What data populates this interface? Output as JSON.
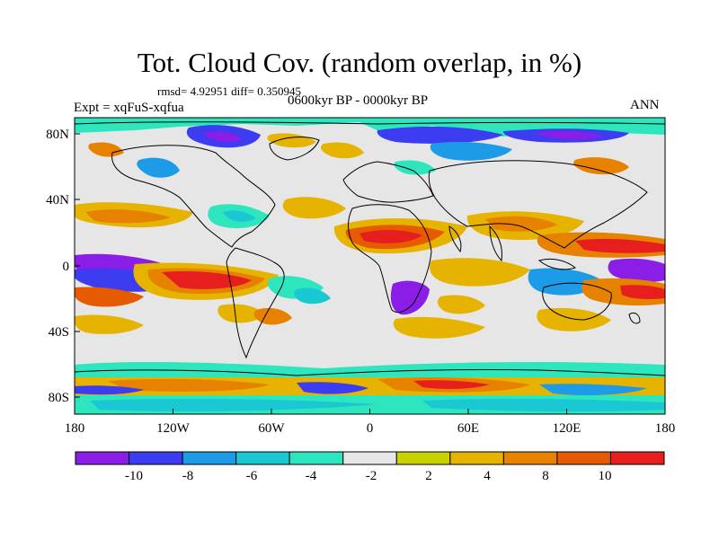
{
  "header": {
    "title": "Tot. Cloud Cov. (random overlap, in %)",
    "stats": "rmsd= 4.92951 diff= 0.350945",
    "experiment": "Expt = xqFuS-xqfua",
    "period": "0600kyr BP - 0000kyr BP",
    "season": "ANN"
  },
  "map": {
    "lon_range": [
      -180,
      180
    ],
    "lat_range": [
      -90,
      90
    ],
    "x_ticks": [
      "180",
      "120W",
      "60W",
      "0",
      "60E",
      "120E",
      "180"
    ],
    "y_ticks": [
      "80N",
      "40N",
      "0",
      "40S",
      "80S"
    ],
    "background_color": "#e6e6e6"
  },
  "colorbar": {
    "labels": [
      "-10",
      "-8",
      "-6",
      "-4",
      "-2",
      "2",
      "4",
      "8",
      "10"
    ],
    "colors": [
      "#8a1ee6",
      "#3c3cf0",
      "#1e9be6",
      "#19c8d2",
      "#2ee6be",
      "#e6e6e6",
      "#c8d200",
      "#e6b400",
      "#e68200",
      "#e65a00",
      "#e61e1e"
    ]
  }
}
